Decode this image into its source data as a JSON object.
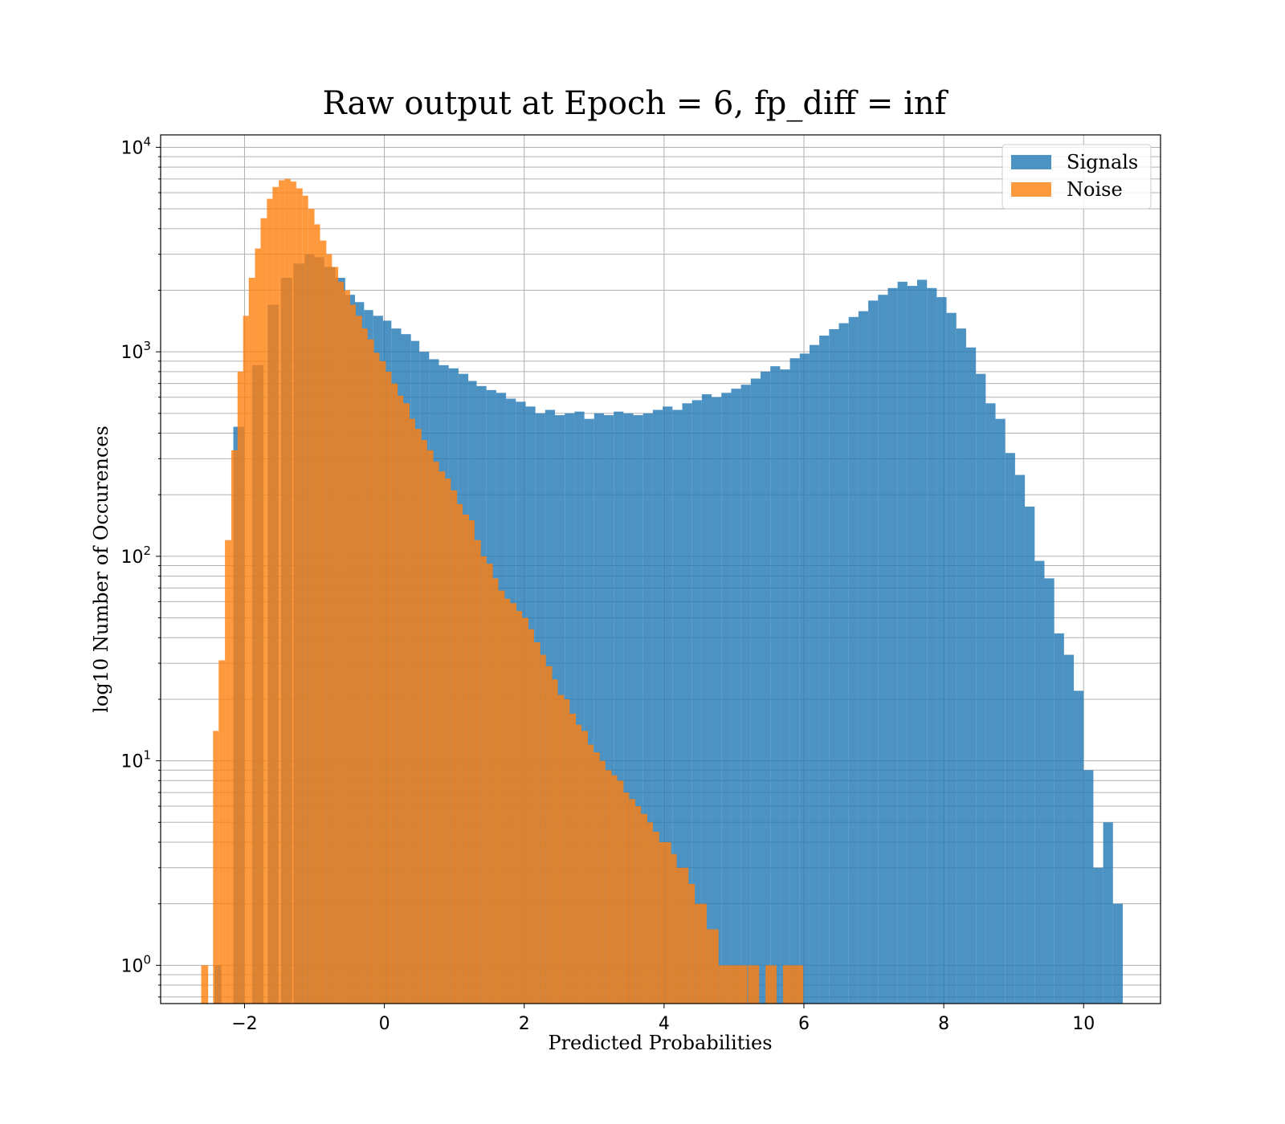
{
  "chart_data": {
    "type": "histogram",
    "title": "Raw output at Epoch = 6, fp_diff = inf",
    "xlabel": "Predicted Probabilities",
    "ylabel": "log10 Number of Occurences",
    "xlim": [
      -3.2,
      11.1
    ],
    "ylim": [
      0.65,
      11500
    ],
    "yscale": "log",
    "grid": true,
    "legend_position": "top-right",
    "x_ticks": [
      -2,
      0,
      2,
      4,
      6,
      8,
      10
    ],
    "x_tick_labels": [
      "−2",
      "0",
      "2",
      "4",
      "6",
      "8",
      "10"
    ],
    "y_ticks": [
      1,
      10,
      100,
      1000,
      10000
    ],
    "y_tick_base": [
      "10",
      "10",
      "10",
      "10",
      "10"
    ],
    "y_tick_exp": [
      "0",
      "1",
      "2",
      "3",
      "4"
    ],
    "series": [
      {
        "name": "Signals",
        "color": "#1f77b4",
        "alpha": 0.8,
        "bins": [
          [
            -2.43,
            1
          ],
          [
            -2.16,
            430
          ],
          [
            -1.89,
            860
          ],
          [
            -1.67,
            1700
          ],
          [
            -1.48,
            2300
          ],
          [
            -1.3,
            2700
          ],
          [
            -1.14,
            3000
          ],
          [
            -1.0,
            2900
          ],
          [
            -0.86,
            2600
          ],
          [
            -0.7,
            2300
          ],
          [
            -0.56,
            1900
          ],
          [
            -0.42,
            1750
          ],
          [
            -0.29,
            1600
          ],
          [
            -0.16,
            1500
          ],
          [
            -0.02,
            1420
          ],
          [
            0.1,
            1300
          ],
          [
            0.24,
            1220
          ],
          [
            0.38,
            1130
          ],
          [
            0.5,
            1000
          ],
          [
            0.64,
            920
          ],
          [
            0.78,
            860
          ],
          [
            0.92,
            830
          ],
          [
            1.06,
            780
          ],
          [
            1.2,
            720
          ],
          [
            1.32,
            680
          ],
          [
            1.46,
            650
          ],
          [
            1.6,
            630
          ],
          [
            1.74,
            590
          ],
          [
            1.88,
            570
          ],
          [
            2.02,
            540
          ],
          [
            2.16,
            500
          ],
          [
            2.3,
            520
          ],
          [
            2.44,
            490
          ],
          [
            2.58,
            500
          ],
          [
            2.72,
            510
          ],
          [
            2.86,
            470
          ],
          [
            3.0,
            500
          ],
          [
            3.14,
            490
          ],
          [
            3.28,
            510
          ],
          [
            3.42,
            500
          ],
          [
            3.56,
            490
          ],
          [
            3.7,
            500
          ],
          [
            3.84,
            520
          ],
          [
            3.98,
            540
          ],
          [
            4.12,
            520
          ],
          [
            4.26,
            560
          ],
          [
            4.4,
            580
          ],
          [
            4.54,
            620
          ],
          [
            4.68,
            600
          ],
          [
            4.82,
            630
          ],
          [
            4.96,
            660
          ],
          [
            5.1,
            690
          ],
          [
            5.24,
            740
          ],
          [
            5.38,
            800
          ],
          [
            5.52,
            850
          ],
          [
            5.66,
            820
          ],
          [
            5.8,
            930
          ],
          [
            5.94,
            980
          ],
          [
            6.08,
            1080
          ],
          [
            6.22,
            1200
          ],
          [
            6.36,
            1290
          ],
          [
            6.5,
            1380
          ],
          [
            6.64,
            1480
          ],
          [
            6.78,
            1580
          ],
          [
            6.92,
            1780
          ],
          [
            7.06,
            1900
          ],
          [
            7.2,
            2050
          ],
          [
            7.34,
            2200
          ],
          [
            7.48,
            2100
          ],
          [
            7.62,
            2250
          ],
          [
            7.76,
            2050
          ],
          [
            7.9,
            1850
          ],
          [
            8.04,
            1550
          ],
          [
            8.18,
            1300
          ],
          [
            8.32,
            1050
          ],
          [
            8.46,
            780
          ],
          [
            8.6,
            560
          ],
          [
            8.74,
            470
          ],
          [
            8.88,
            320
          ],
          [
            9.02,
            250
          ],
          [
            9.16,
            175
          ],
          [
            9.3,
            95
          ],
          [
            9.44,
            78
          ],
          [
            9.58,
            42
          ],
          [
            9.72,
            33
          ],
          [
            9.86,
            22
          ],
          [
            10.0,
            9
          ],
          [
            10.14,
            3
          ],
          [
            10.28,
            5
          ],
          [
            10.42,
            2
          ]
        ]
      },
      {
        "name": "Noise",
        "color": "#ff7f0e",
        "alpha": 0.8,
        "bins": [
          [
            -2.62,
            1
          ],
          [
            -2.45,
            14
          ],
          [
            -2.37,
            31
          ],
          [
            -2.28,
            120
          ],
          [
            -2.19,
            330
          ],
          [
            -2.1,
            800
          ],
          [
            -2.02,
            1500
          ],
          [
            -1.94,
            2300
          ],
          [
            -1.85,
            3200
          ],
          [
            -1.77,
            4500
          ],
          [
            -1.68,
            5600
          ],
          [
            -1.6,
            6400
          ],
          [
            -1.51,
            6900
          ],
          [
            -1.43,
            7000
          ],
          [
            -1.34,
            6800
          ],
          [
            -1.26,
            6300
          ],
          [
            -1.17,
            5800
          ],
          [
            -1.09,
            5000
          ],
          [
            -1.0,
            4200
          ],
          [
            -0.92,
            3500
          ],
          [
            -0.83,
            3000
          ],
          [
            -0.75,
            2600
          ],
          [
            -0.66,
            2200
          ],
          [
            -0.58,
            2000
          ],
          [
            -0.49,
            1700
          ],
          [
            -0.41,
            1500
          ],
          [
            -0.32,
            1300
          ],
          [
            -0.24,
            1150
          ],
          [
            -0.15,
            990
          ],
          [
            -0.07,
            900
          ],
          [
            0.02,
            800
          ],
          [
            0.1,
            700
          ],
          [
            0.19,
            610
          ],
          [
            0.27,
            560
          ],
          [
            0.36,
            470
          ],
          [
            0.44,
            420
          ],
          [
            0.53,
            370
          ],
          [
            0.61,
            330
          ],
          [
            0.7,
            290
          ],
          [
            0.78,
            260
          ],
          [
            0.87,
            240
          ],
          [
            0.95,
            210
          ],
          [
            1.04,
            180
          ],
          [
            1.12,
            160
          ],
          [
            1.21,
            150
          ],
          [
            1.29,
            120
          ],
          [
            1.38,
            100
          ],
          [
            1.46,
            92
          ],
          [
            1.55,
            78
          ],
          [
            1.63,
            68
          ],
          [
            1.72,
            62
          ],
          [
            1.8,
            59
          ],
          [
            1.89,
            54
          ],
          [
            1.97,
            50
          ],
          [
            2.06,
            44
          ],
          [
            2.14,
            38
          ],
          [
            2.23,
            33
          ],
          [
            2.31,
            29
          ],
          [
            2.4,
            25
          ],
          [
            2.48,
            21
          ],
          [
            2.57,
            20
          ],
          [
            2.65,
            17
          ],
          [
            2.74,
            15
          ],
          [
            2.82,
            14
          ],
          [
            2.91,
            12
          ],
          [
            2.99,
            11
          ],
          [
            3.08,
            10
          ],
          [
            3.16,
            9
          ],
          [
            3.25,
            8.5
          ],
          [
            3.33,
            8
          ],
          [
            3.42,
            7
          ],
          [
            3.5,
            6.5
          ],
          [
            3.59,
            6
          ],
          [
            3.67,
            5.5
          ],
          [
            3.76,
            5
          ],
          [
            3.84,
            4.5
          ],
          [
            3.93,
            4
          ],
          [
            4.01,
            4
          ],
          [
            4.1,
            3.5
          ],
          [
            4.18,
            3
          ],
          [
            4.27,
            3
          ],
          [
            4.35,
            2.5
          ],
          [
            4.44,
            2
          ],
          [
            4.52,
            2
          ],
          [
            4.61,
            1.5
          ],
          [
            4.69,
            1.5
          ],
          [
            4.78,
            1
          ],
          [
            4.86,
            1
          ],
          [
            4.95,
            1
          ],
          [
            5.03,
            1
          ],
          [
            5.2,
            1
          ],
          [
            5.45,
            1
          ],
          [
            5.7,
            1
          ],
          [
            5.85,
            1
          ]
        ]
      }
    ]
  }
}
